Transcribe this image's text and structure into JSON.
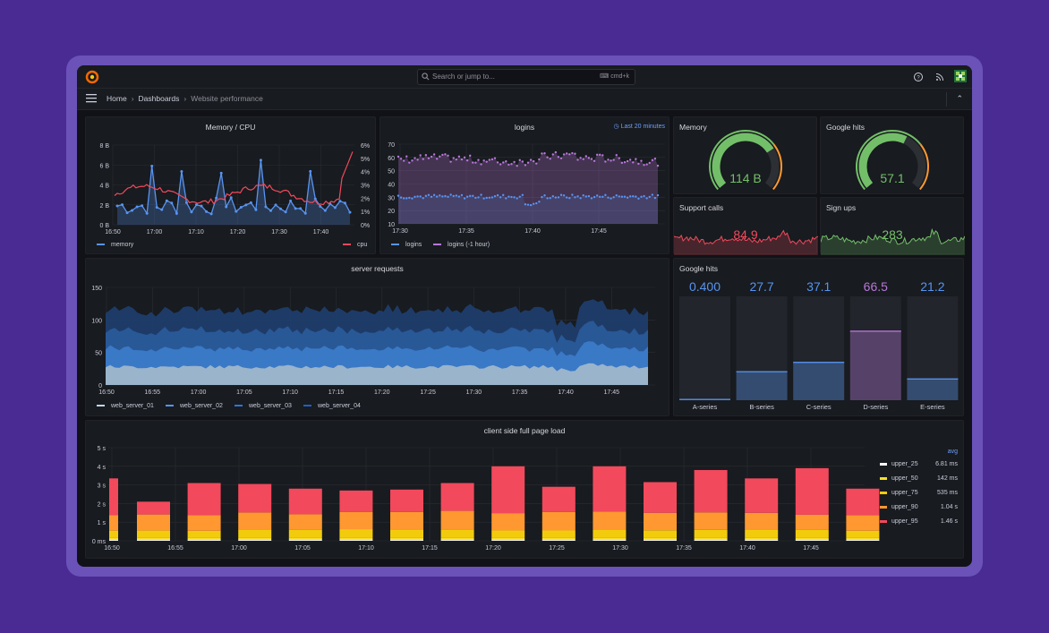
{
  "topbar": {
    "search_placeholder": "Search or jump to...",
    "search_shortcut": "cmd+k"
  },
  "breadcrumb": {
    "home": "Home",
    "dashboards": "Dashboards",
    "current": "Website performance"
  },
  "colors": {
    "memory": "#5794f2",
    "cpu": "#f2495c",
    "logins": "#5794f2",
    "logins_prev": "#b877d9",
    "gauge_green": "#73bf69",
    "gauge_orange": "#ff9830",
    "stat_red": "#f2495c",
    "stat_green": "#73bf69"
  },
  "panels": {
    "memory_cpu": {
      "title": "Memory / CPU",
      "legend": [
        "memory",
        "cpu"
      ],
      "y_left_ticks": [
        "8 B",
        "6 B",
        "4 B",
        "2 B",
        "0 B"
      ],
      "y_right_ticks": [
        "6%",
        "5%",
        "4%",
        "3%",
        "2%",
        "1%",
        "0%"
      ],
      "x_ticks": [
        "16:50",
        "17:00",
        "17:10",
        "17:20",
        "17:30",
        "17:40"
      ]
    },
    "logins": {
      "title": "logins",
      "time_range": "Last 20 minutes",
      "legend": [
        "logins",
        "logins (-1 hour)"
      ],
      "y_ticks": [
        "70",
        "60",
        "50",
        "40",
        "30",
        "20",
        "10"
      ],
      "x_ticks": [
        "17:30",
        "17:35",
        "17:40",
        "17:45"
      ]
    },
    "memory_gauge": {
      "title": "Memory",
      "value": "114 B",
      "fraction": 0.72
    },
    "google_hits_gauge": {
      "title": "Google hits",
      "value": "57.1",
      "fraction": 0.6
    },
    "support_calls": {
      "title": "Support calls",
      "value": "84.9"
    },
    "sign_ups": {
      "title": "Sign ups",
      "value": "283"
    },
    "server_requests": {
      "title": "server requests",
      "legend": [
        "web_server_01",
        "web_server_02",
        "web_server_03",
        "web_server_04"
      ],
      "y_ticks": [
        "150",
        "100",
        "50",
        "0"
      ],
      "x_ticks": [
        "16:50",
        "16:55",
        "17:00",
        "17:05",
        "17:10",
        "17:15",
        "17:20",
        "17:25",
        "17:30",
        "17:35",
        "17:40",
        "17:45"
      ]
    },
    "google_hits_bars": {
      "title": "Google hits",
      "bars": [
        {
          "label": "A-series",
          "value": "0.400",
          "color": "#5794f2",
          "fill": 0.01
        },
        {
          "label": "B-series",
          "value": "27.7",
          "color": "#5794f2",
          "fill": 0.28
        },
        {
          "label": "C-series",
          "value": "37.1",
          "color": "#5794f2",
          "fill": 0.37
        },
        {
          "label": "D-series",
          "value": "66.5",
          "color": "#b877d9",
          "fill": 0.67
        },
        {
          "label": "E-series",
          "value": "21.2",
          "color": "#5794f2",
          "fill": 0.21
        }
      ]
    },
    "page_load": {
      "title": "client side full page load",
      "y_ticks": [
        "5 s",
        "4 s",
        "3 s",
        "2 s",
        "1 s",
        "0 ms"
      ],
      "x_ticks": [
        "16:50",
        "16:55",
        "17:00",
        "17:05",
        "17:10",
        "17:15",
        "17:20",
        "17:25",
        "17:30",
        "17:35",
        "17:40",
        "17:45"
      ],
      "legend_header": "avg",
      "legend": [
        {
          "name": "upper_25",
          "avg": "6.81 ms",
          "color": "#ffffff"
        },
        {
          "name": "upper_50",
          "avg": "142 ms",
          "color": "#fade2a"
        },
        {
          "name": "upper_75",
          "avg": "535 ms",
          "color": "#f2cc0c"
        },
        {
          "name": "upper_90",
          "avg": "1.04 s",
          "color": "#ff9830"
        },
        {
          "name": "upper_95",
          "avg": "1.46 s",
          "color": "#f2495c"
        }
      ]
    }
  }
}
